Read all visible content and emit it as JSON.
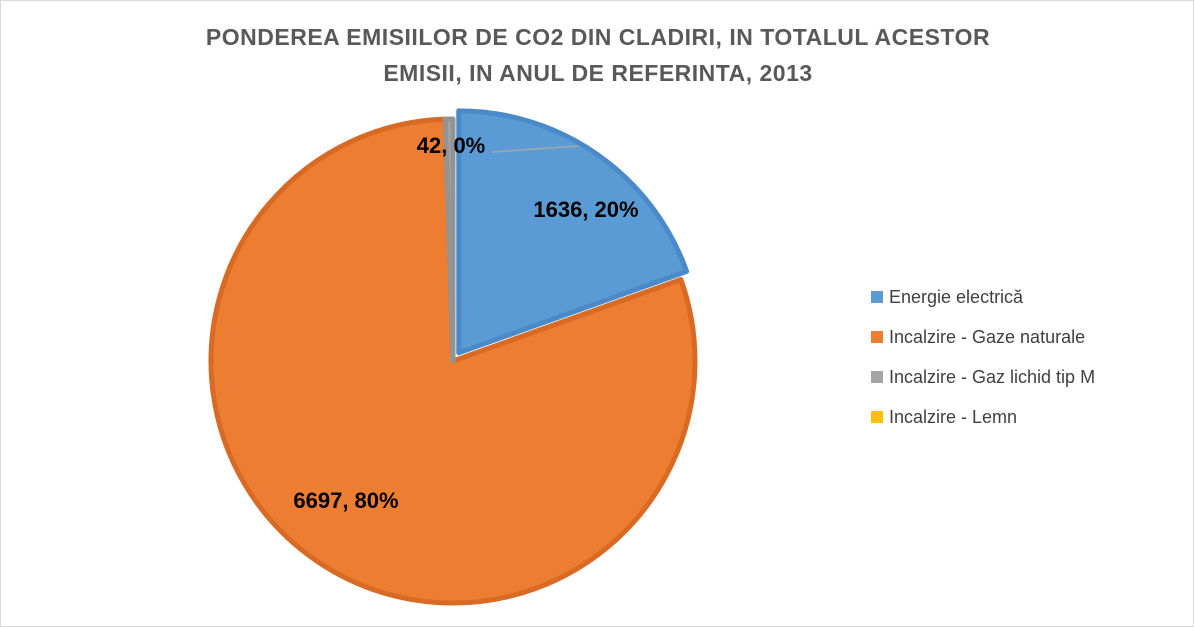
{
  "chart_data": {
    "type": "pie",
    "title_lines": [
      "PONDEREA EMISIILOR DE CO2 DIN CLADIRI, IN TOTALUL ACESTOR",
      "EMISII, IN ANUL DE REFERINTA, 2013"
    ],
    "legend_position": "right",
    "slices": [
      {
        "name": "Energie electrică",
        "value": 1636,
        "label": "1636, 20%",
        "color": "#5B9BD5"
      },
      {
        "name": "Incalzire - Gaze naturale",
        "value": 6697,
        "label": "6697, 80%",
        "color": "#ED7D31"
      },
      {
        "name": "Incalzire - Gaz lichid tip M",
        "value": 42,
        "label": "42, 0%",
        "color": "#A5A5A5"
      },
      {
        "name": "Incalzire - Lemn",
        "value": 0,
        "label": "",
        "color": "#FFC000"
      }
    ]
  }
}
